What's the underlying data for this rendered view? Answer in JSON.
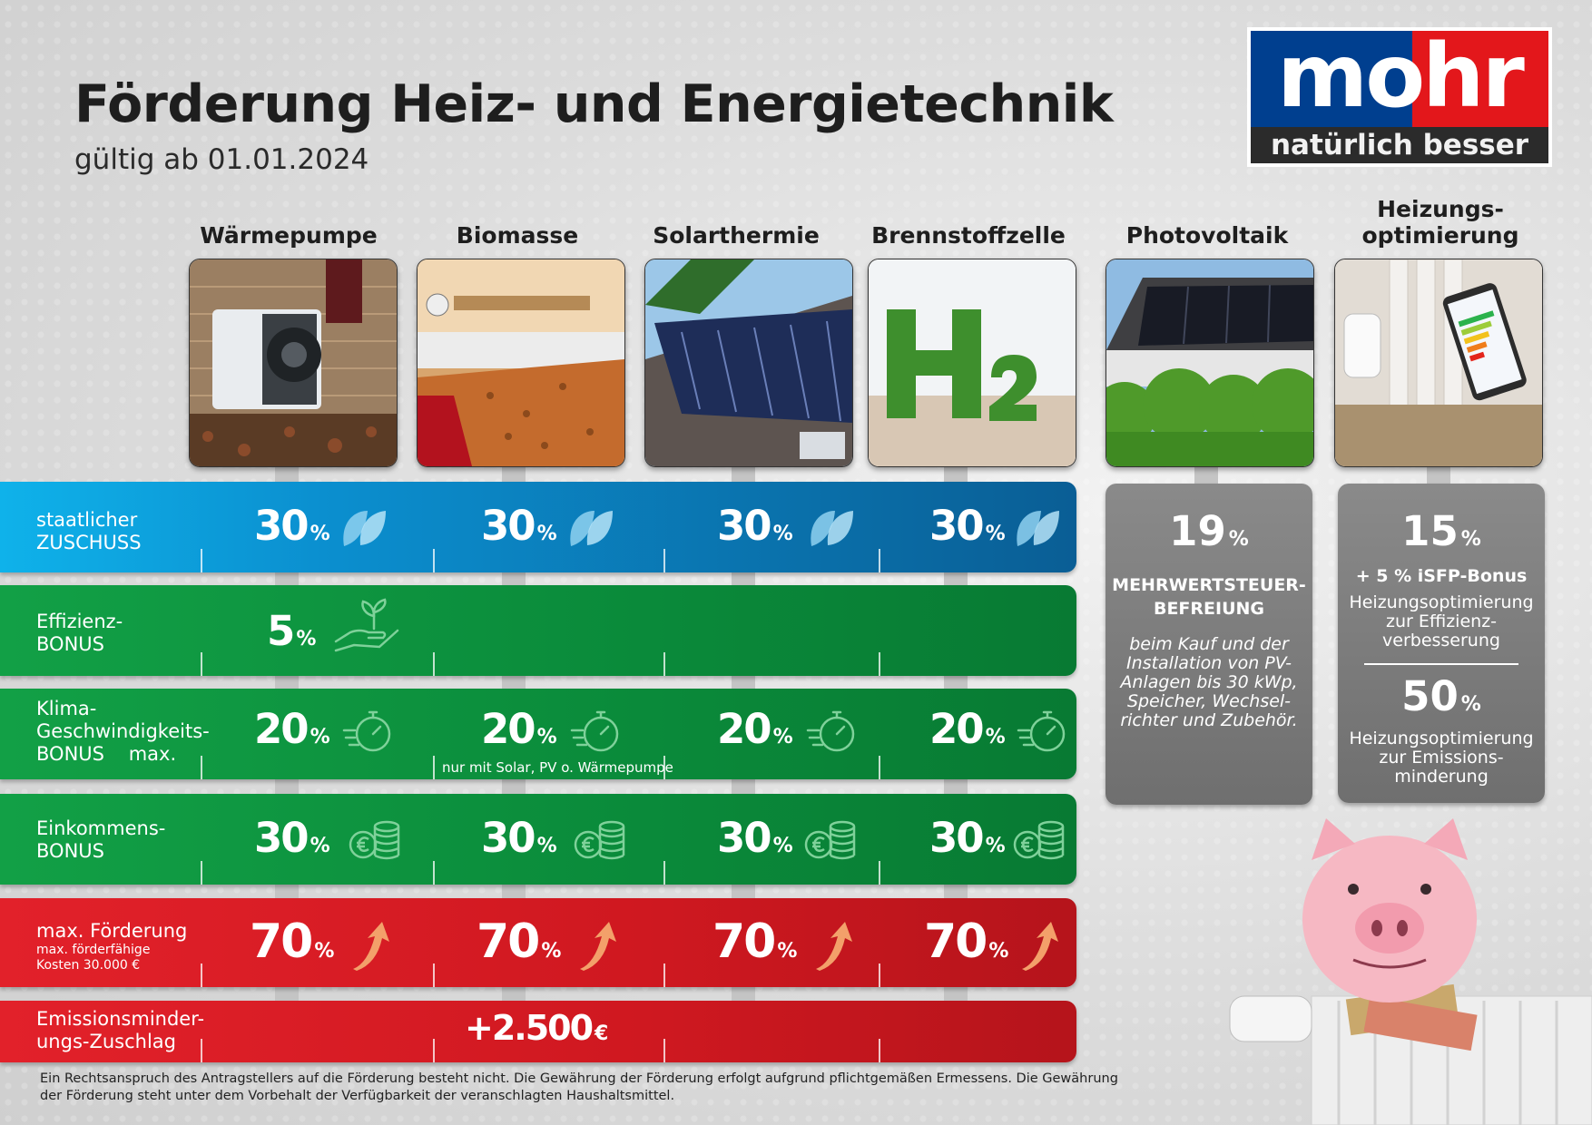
{
  "header": {
    "title": "Förderung Heiz- und Energietechnik",
    "subtitle": "gültig ab 01.01.2024"
  },
  "logo": {
    "word": "mohr",
    "slogan": "natürlich besser",
    "colors": {
      "blue": "#003f8f",
      "red": "#e3171b",
      "dark": "#2b2b2b"
    }
  },
  "columns": [
    {
      "label": "Wärmepumpe",
      "photo": "heat-pump-photo"
    },
    {
      "label": "Biomasse",
      "photo": "wood-pellet-photo"
    },
    {
      "label": "Solarthermie",
      "photo": "solar-thermal-photo"
    },
    {
      "label": "Brennstoffzelle",
      "photo": "hydrogen-h2-photo"
    },
    {
      "label": "Photovoltaik",
      "photo": "photovoltaic-roof-photo"
    },
    {
      "label": "Heizungs-optimierung",
      "photo": "radiator-thermostat-app-photo"
    }
  ],
  "rows": {
    "zuschuss": {
      "label1": "staatlicher",
      "label2": "ZUSCHUSS",
      "values": [
        "30",
        "30",
        "30",
        "30"
      ],
      "unit": "%",
      "icon": "leaf-icon",
      "color": "#0a9ad6"
    },
    "effizienz": {
      "label1": "Effizienz-",
      "label2": "BONUS",
      "values": [
        "5"
      ],
      "unit": "%",
      "icon": "plant-in-hand-icon",
      "color": "#0e8f3c"
    },
    "klima": {
      "label1": "Klima-",
      "label2": "Geschwindigkeits-",
      "label3": "BONUS",
      "label3b": "max.",
      "values": [
        "20",
        "20",
        "20",
        "20"
      ],
      "unit": "%",
      "icon": "stopwatch-icon",
      "note": "nur mit Solar, PV o. Wärmepumpe",
      "color": "#0e8f3c"
    },
    "einkommen": {
      "label1": "Einkommens-",
      "label2": "BONUS",
      "values": [
        "30",
        "30",
        "30",
        "30"
      ],
      "unit": "%",
      "icon": "euro-coins-icon",
      "color": "#0e8f3c"
    },
    "max": {
      "label1": "max. Förderung",
      "label2": "max. förderfähige",
      "label3": "Kosten 30.000 €",
      "values": [
        "70",
        "70",
        "70",
        "70"
      ],
      "unit": "%",
      "icon": "arrow-up-icon",
      "color": "#d7171f"
    },
    "emission": {
      "label1": "Emissionsminder-",
      "label2": "ungs-Zuschlag",
      "value": "+2.500",
      "unit": "€",
      "color": "#d7171f"
    }
  },
  "cards": {
    "pv": {
      "value": "19",
      "unit": "%",
      "title1": "MEHRWERTSTEUER-",
      "title2": "BEFREIUNG",
      "desc1": "beim Kauf und der",
      "desc2": "Installation von PV-",
      "desc3": "Anlagen bis 30 kWp,",
      "desc4": "Speicher, Wechsel-",
      "desc5": "richter und Zubehör."
    },
    "opt": {
      "value1": "15",
      "unit": "%",
      "bonus": "+ 5 % iSFP-Bonus",
      "desc1a": "Heizungsoptimierung",
      "desc1b": "zur Effizienz-",
      "desc1c": "verbesserung",
      "value2": "50",
      "desc2a": "Heizungsoptimierung",
      "desc2b": "zur Emissions-",
      "desc2c": "minderung"
    }
  },
  "footer": {
    "line1": "Ein Rechtsanspruch des Antragstellers auf die Förderung besteht nicht. Die Gewährung der Förderung erfolgt aufgrund pflichtgemäßen Ermessens. Die Gewährung",
    "line2": "der Förderung steht unter dem Vorbehalt der Verfügbarkeit der veranschlagten Haushaltsmittel."
  }
}
